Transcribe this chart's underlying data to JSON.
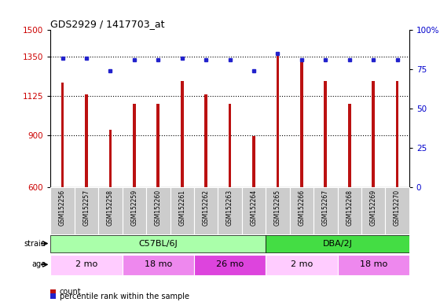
{
  "title": "GDS2929 / 1417703_at",
  "samples": [
    "GSM152256",
    "GSM152257",
    "GSM152258",
    "GSM152259",
    "GSM152260",
    "GSM152261",
    "GSM152262",
    "GSM152263",
    "GSM152264",
    "GSM152265",
    "GSM152266",
    "GSM152267",
    "GSM152268",
    "GSM152269",
    "GSM152270"
  ],
  "counts": [
    1200,
    1130,
    930,
    1080,
    1080,
    1210,
    1130,
    1080,
    895,
    1360,
    1340,
    1210,
    1080,
    1210,
    1210
  ],
  "percentiles": [
    82,
    82,
    74,
    81,
    81,
    82,
    81,
    81,
    74,
    85,
    81,
    81,
    81,
    81,
    81
  ],
  "ylim_left": [
    600,
    1500
  ],
  "ylim_right": [
    0,
    100
  ],
  "yticks_left": [
    600,
    900,
    1125,
    1350,
    1500
  ],
  "yticks_right": [
    0,
    25,
    50,
    75,
    100
  ],
  "hlines": [
    900,
    1125,
    1350
  ],
  "bar_color": "#bb1111",
  "dot_color": "#2222cc",
  "strain_data": [
    {
      "label": "C57BL/6J",
      "start": 0,
      "end": 9,
      "color": "#aaffaa"
    },
    {
      "label": "DBA/2J",
      "start": 9,
      "end": 15,
      "color": "#44dd44"
    }
  ],
  "age_data": [
    {
      "label": "2 mo",
      "start": 0,
      "end": 3,
      "color": "#ffccff"
    },
    {
      "label": "18 mo",
      "start": 3,
      "end": 6,
      "color": "#ee88ee"
    },
    {
      "label": "26 mo",
      "start": 6,
      "end": 9,
      "color": "#dd44dd"
    },
    {
      "label": "2 mo",
      "start": 9,
      "end": 12,
      "color": "#ffccff"
    },
    {
      "label": "18 mo",
      "start": 12,
      "end": 15,
      "color": "#ee88ee"
    }
  ],
  "legend_count_label": "count",
  "legend_pct_label": "percentile rank within the sample",
  "sample_bg": "#cccccc",
  "left_tick_color": "#cc0000",
  "right_tick_color": "#0000cc",
  "bar_width": 0.12
}
